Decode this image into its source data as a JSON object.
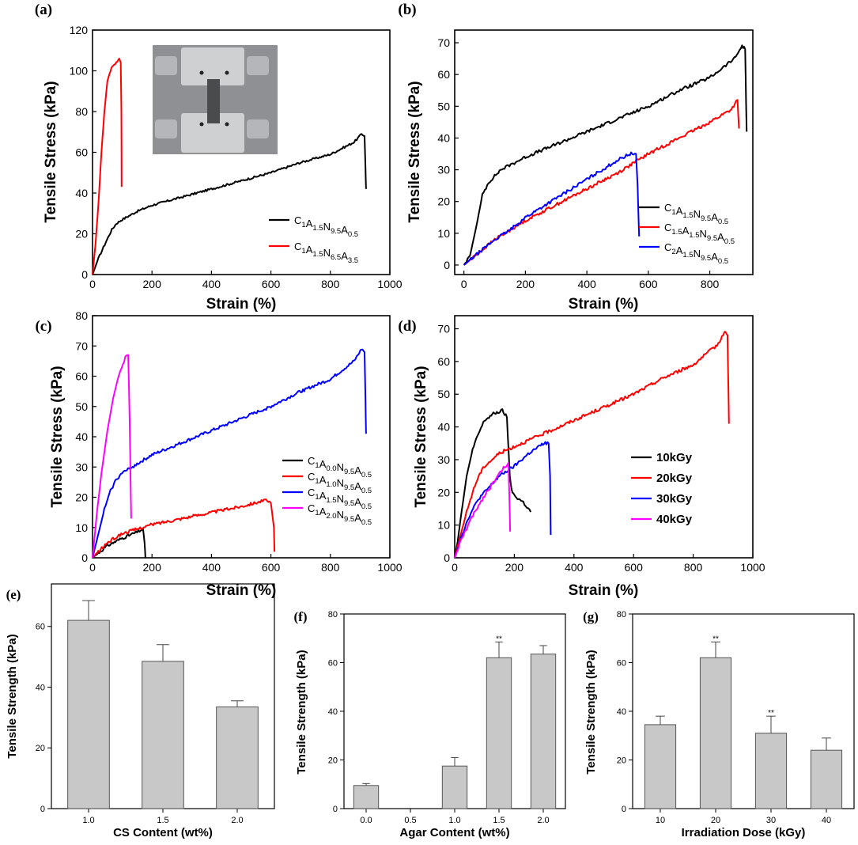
{
  "chart_data": [
    {
      "id": "a",
      "panel_label": "(a)",
      "type": "line",
      "xlabel": "Strain (%)",
      "ylabel": "Tensile Stress (kPa)",
      "xlim": [
        0,
        1000
      ],
      "ylim": [
        0,
        120
      ],
      "xticks": [
        "0",
        "200",
        "400",
        "600",
        "800",
        "1000"
      ],
      "yticks": [
        "0",
        "20",
        "40",
        "60",
        "80",
        "100",
        "120"
      ],
      "legend_position": "lower-right",
      "inset": "photo of tensile test clamps",
      "series": [
        {
          "name": "C1A1.5N9.5A0.5",
          "sub": [
            "1",
            "1.5",
            "9.5",
            "0.5"
          ],
          "color": "#000000",
          "x": [
            0,
            20,
            45,
            65,
            80,
            100,
            150,
            200,
            300,
            400,
            500,
            600,
            700,
            800,
            880,
            905,
            915,
            918,
            920
          ],
          "y": [
            0,
            8,
            16,
            22,
            25,
            27,
            31,
            34,
            38,
            42,
            46,
            50,
            55,
            59,
            65,
            69,
            68,
            52,
            42
          ]
        },
        {
          "name": "C1A1.5N6.5A3.5",
          "sub": [
            "1",
            "1.5",
            "6.5",
            "3.5"
          ],
          "color": "#ff0000",
          "x": [
            0,
            10,
            20,
            30,
            40,
            50,
            60,
            70,
            80,
            90,
            95,
            97,
            98
          ],
          "y": [
            0,
            15,
            35,
            60,
            80,
            95,
            100,
            103,
            104,
            106,
            104,
            80,
            43
          ]
        }
      ]
    },
    {
      "id": "b",
      "panel_label": "(b)",
      "type": "line",
      "xlabel": "Strain (%)",
      "ylabel": "Tensile Stress (kPa)",
      "xlim": [
        -30,
        940
      ],
      "ylim": [
        -3,
        74
      ],
      "xticks": [
        "0",
        "200",
        "400",
        "600",
        "800"
      ],
      "xtick_values": [
        0,
        200,
        400,
        600,
        800
      ],
      "yticks": [
        "0",
        "10",
        "20",
        "30",
        "40",
        "50",
        "60",
        "70"
      ],
      "legend_position": "lower-right",
      "series": [
        {
          "name": "C1A1.5N9.5A0.5",
          "sub": [
            "1",
            "1.5",
            "9.5",
            "0.5"
          ],
          "color": "#000000",
          "x": [
            0,
            20,
            40,
            60,
            80,
            120,
            160,
            200,
            300,
            400,
            500,
            600,
            700,
            800,
            880,
            905,
            915,
            918,
            920
          ],
          "y": [
            0,
            3,
            12,
            22,
            26,
            30,
            32,
            34,
            38,
            42,
            46,
            50,
            55,
            59,
            65,
            69,
            68,
            52,
            42
          ]
        },
        {
          "name": "C1.5A1.5N9.5A0.5",
          "sub": [
            "1.5",
            "1.5",
            "9.5",
            "0.5"
          ],
          "color": "#ff0000",
          "x": [
            0,
            100,
            200,
            300,
            400,
            500,
            600,
            700,
            800,
            870,
            890,
            895
          ],
          "y": [
            0,
            8,
            14,
            19,
            24,
            29,
            35,
            40,
            45,
            49,
            52,
            43
          ]
        },
        {
          "name": "C2A1.5N9.5A0.5",
          "sub": [
            "2",
            "1.5",
            "9.5",
            "0.5"
          ],
          "color": "#0000ff",
          "x": [
            0,
            50,
            100,
            150,
            200,
            300,
            400,
            500,
            540,
            560,
            565,
            570
          ],
          "y": [
            0,
            4,
            8,
            11,
            15,
            21,
            27,
            33,
            35,
            35,
            25,
            9
          ]
        }
      ]
    },
    {
      "id": "c",
      "panel_label": "(c)",
      "type": "line",
      "xlabel": "Strain (%)",
      "ylabel": "Tensile Stress (kPa)",
      "xlim": [
        0,
        1000
      ],
      "ylim": [
        0,
        80
      ],
      "xticks": [
        "0",
        "200",
        "400",
        "600",
        "800",
        "1000"
      ],
      "yticks": [
        "0",
        "10",
        "20",
        "30",
        "40",
        "50",
        "60",
        "70",
        "80"
      ],
      "legend_position": "lower-right",
      "series": [
        {
          "name": "C1A0.0N9.5A0.5",
          "sub": [
            "1",
            "0.0",
            "9.5",
            "0.5"
          ],
          "color": "#000000",
          "x": [
            0,
            50,
            100,
            150,
            170,
            175,
            178
          ],
          "y": [
            0,
            4,
            6.5,
            8.5,
            9.5,
            5,
            0
          ]
        },
        {
          "name": "C1A1.0N9.5A0.5",
          "sub": [
            "1",
            "1.0",
            "9.5",
            "0.5"
          ],
          "color": "#ff0000",
          "x": [
            0,
            50,
            100,
            200,
            300,
            400,
            500,
            580,
            600,
            610,
            612
          ],
          "y": [
            0,
            5,
            8,
            11,
            13,
            15,
            17,
            19,
            18,
            10,
            2
          ]
        },
        {
          "name": "C1A1.5N9.5A0.5",
          "sub": [
            "1",
            "1.5",
            "9.5",
            "0.5"
          ],
          "color": "#0000ff",
          "x": [
            0,
            20,
            40,
            60,
            80,
            100,
            150,
            200,
            300,
            400,
            500,
            600,
            700,
            800,
            880,
            905,
            915,
            918,
            920
          ],
          "y": [
            0,
            8,
            16,
            22,
            26,
            28,
            31,
            34,
            38,
            42,
            46,
            50,
            55,
            59,
            65,
            69,
            68,
            52,
            41
          ]
        },
        {
          "name": "C1A2.0N9.5A0.5",
          "sub": [
            "1",
            "2.0",
            "9.5",
            "0.5"
          ],
          "color": "#ff00ff",
          "x": [
            0,
            15,
            30,
            50,
            70,
            90,
            110,
            120,
            125,
            130
          ],
          "y": [
            0,
            15,
            28,
            42,
            53,
            61,
            66,
            67,
            45,
            13
          ]
        }
      ]
    },
    {
      "id": "d",
      "panel_label": "(d)",
      "type": "line",
      "xlabel": "Strain (%)",
      "ylabel": "Tensile Stress (kPa)",
      "xlim": [
        0,
        1000
      ],
      "ylim": [
        0,
        74
      ],
      "xticks": [
        "0",
        "200",
        "400",
        "600",
        "800",
        "1000"
      ],
      "yticks": [
        "0",
        "10",
        "20",
        "30",
        "40",
        "50",
        "60",
        "70"
      ],
      "legend_position": "center-right",
      "series": [
        {
          "name": "10kGy",
          "color": "#000000",
          "x": [
            0,
            10,
            20,
            40,
            60,
            80,
            100,
            130,
            160,
            175,
            185,
            190,
            200,
            230,
            255
          ],
          "y": [
            0,
            5,
            12,
            25,
            33,
            38,
            42,
            44,
            45,
            43,
            25,
            21,
            19,
            17,
            14
          ]
        },
        {
          "name": "20kGy",
          "color": "#ff0000",
          "x": [
            0,
            20,
            40,
            60,
            80,
            100,
            150,
            200,
            300,
            400,
            500,
            600,
            700,
            800,
            880,
            905,
            915,
            918,
            920
          ],
          "y": [
            0,
            7,
            14,
            20,
            25,
            28,
            32,
            34,
            38,
            42,
            46,
            50,
            55,
            59,
            65,
            69,
            68,
            52,
            41
          ]
        },
        {
          "name": "30kGy",
          "color": "#0000ff",
          "x": [
            0,
            20,
            50,
            80,
            100,
            150,
            200,
            250,
            300,
            315,
            320,
            322
          ],
          "y": [
            0,
            6,
            13,
            18,
            20,
            25,
            28,
            32,
            35,
            35,
            25,
            7
          ]
        },
        {
          "name": "40kGy",
          "color": "#ff00ff",
          "x": [
            0,
            20,
            50,
            80,
            100,
            130,
            160,
            180,
            183,
            186
          ],
          "y": [
            0,
            5,
            11,
            16,
            19,
            23,
            27,
            29,
            20,
            8
          ]
        }
      ]
    },
    {
      "id": "e",
      "panel_label": "(e)",
      "type": "bar",
      "xlabel": "CS Content (wt%)",
      "ylabel": "Tensile Strength (kPa)",
      "ylim": [
        0,
        74
      ],
      "yticks": [
        "0",
        "20",
        "40",
        "60"
      ],
      "categories": [
        "1.0",
        "1.5",
        "2.0"
      ],
      "values": [
        62,
        48.5,
        33.5
      ],
      "errors": [
        6.5,
        5.5,
        2
      ],
      "significance": [
        "",
        "",
        ""
      ]
    },
    {
      "id": "f",
      "panel_label": "(f)",
      "type": "bar",
      "xlabel": "Agar Content (wt%)",
      "ylabel": "Tensile Strength (kPa)",
      "ylim": [
        0,
        80
      ],
      "yticks": [
        "0",
        "20",
        "40",
        "60",
        "80"
      ],
      "categories": [
        "0.0",
        "0.5",
        "1.0",
        "1.5",
        "2.0"
      ],
      "values": [
        9.5,
        null,
        17.5,
        62,
        63.5
      ],
      "errors": [
        0.8,
        null,
        3.5,
        6.5,
        3.5
      ],
      "significance": [
        "",
        "",
        "",
        "**",
        ""
      ]
    },
    {
      "id": "g",
      "panel_label": "(g)",
      "type": "bar",
      "xlabel": "Irradiation Dose (kGy)",
      "ylabel": "Tensile Strength (kPa)",
      "ylim": [
        0,
        80
      ],
      "yticks": [
        "0",
        "20",
        "40",
        "60",
        "80"
      ],
      "categories": [
        "10",
        "20",
        "30",
        "40"
      ],
      "values": [
        34.5,
        62,
        31,
        24
      ],
      "errors": [
        3.5,
        6.5,
        7,
        5
      ],
      "significance": [
        "",
        "**",
        "**",
        ""
      ]
    }
  ]
}
